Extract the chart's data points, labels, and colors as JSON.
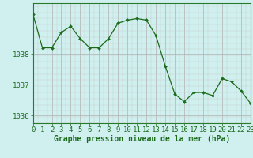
{
  "hours": [
    0,
    1,
    2,
    3,
    4,
    5,
    6,
    7,
    8,
    9,
    10,
    11,
    12,
    13,
    14,
    15,
    16,
    17,
    18,
    19,
    20,
    21,
    22,
    23
  ],
  "pressure": [
    1039.3,
    1038.2,
    1038.2,
    1038.7,
    1038.9,
    1038.5,
    1038.2,
    1038.2,
    1038.5,
    1039.0,
    1039.1,
    1039.15,
    1039.1,
    1038.6,
    1037.6,
    1036.7,
    1036.45,
    1036.75,
    1036.75,
    1036.65,
    1037.2,
    1037.1,
    1036.8,
    1036.4
  ],
  "line_color": "#1a6b1a",
  "marker_color": "#1a6b1a",
  "bg_color": "#d0f0f0",
  "grid_color_major": "#b0b0b0",
  "grid_color_minor": "#c8c8c8",
  "xlabel": "Graphe pression niveau de la mer (hPa)",
  "xlabel_color": "#1a6b1a",
  "tick_label_color": "#1a6b1a",
  "ylim": [
    1035.75,
    1039.65
  ],
  "yticks": [
    1036,
    1037,
    1038
  ],
  "xlim": [
    0,
    23
  ],
  "axis_color": "#2a7a2a",
  "font_size_ticks": 6.5,
  "font_size_xlabel": 7.0
}
